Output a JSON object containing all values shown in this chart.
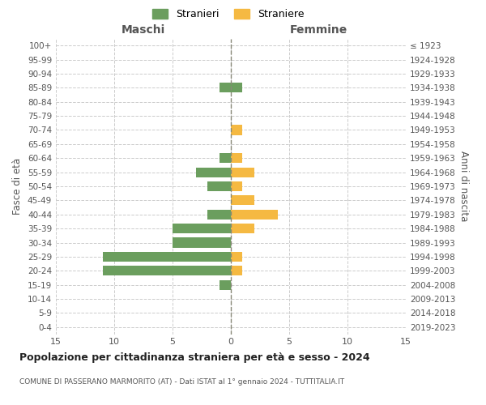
{
  "age_groups": [
    "100+",
    "95-99",
    "90-94",
    "85-89",
    "80-84",
    "75-79",
    "70-74",
    "65-69",
    "60-64",
    "55-59",
    "50-54",
    "45-49",
    "40-44",
    "35-39",
    "30-34",
    "25-29",
    "20-24",
    "15-19",
    "10-14",
    "5-9",
    "0-4"
  ],
  "birth_years": [
    "≤ 1923",
    "1924-1928",
    "1929-1933",
    "1934-1938",
    "1939-1943",
    "1944-1948",
    "1949-1953",
    "1954-1958",
    "1959-1963",
    "1964-1968",
    "1969-1973",
    "1974-1978",
    "1979-1983",
    "1984-1988",
    "1989-1993",
    "1994-1998",
    "1999-2003",
    "2004-2008",
    "2009-2013",
    "2014-2018",
    "2019-2023"
  ],
  "males_stranieri": [
    0,
    0,
    0,
    1,
    0,
    0,
    0,
    0,
    1,
    3,
    2,
    0,
    2,
    5,
    5,
    11,
    11,
    1,
    0,
    0,
    0
  ],
  "females_straniere": [
    0,
    0,
    0,
    0,
    0,
    0,
    1,
    0,
    1,
    2,
    1,
    2,
    4,
    2,
    0,
    1,
    1,
    0,
    0,
    0,
    0
  ],
  "males_straniere": [
    0,
    0,
    0,
    0,
    0,
    0,
    0,
    0,
    0,
    0,
    0,
    0,
    0,
    0,
    0,
    0,
    0,
    0,
    0,
    0,
    0
  ],
  "females_stranieri": [
    0,
    0,
    0,
    1,
    0,
    0,
    0,
    0,
    0,
    0,
    0,
    0,
    0,
    0,
    0,
    0,
    0,
    0,
    0,
    0,
    0
  ],
  "color_stranieri": "#6b9e5e",
  "color_straniere": "#f5b942",
  "title": "Popolazione per cittadinanza straniera per età e sesso - 2024",
  "subtitle": "COMUNE DI PASSERANO MARMORITO (AT) - Dati ISTAT al 1° gennaio 2024 - TUTTITALIA.IT",
  "label_maschi": "Maschi",
  "label_femmine": "Femmine",
  "label_fasce_eta": "Fasce di età",
  "label_anni_nascita": "Anni di nascita",
  "legend_stranieri": "Stranieri",
  "legend_straniere": "Straniere",
  "xlim": 15,
  "background_color": "#ffffff",
  "grid_color": "#cccccc"
}
